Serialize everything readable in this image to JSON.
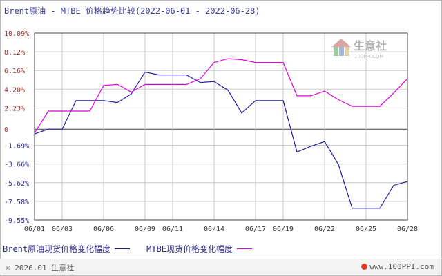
{
  "title": "Brent原油 - MTBE 价格趋势比较(2022-06-01 - 2022-06-28)",
  "watermark": {
    "text": "生意社",
    "sub": "100PPI.COM"
  },
  "legend": {
    "brent": "Brent原油现货价格变化幅度",
    "mtbe": "MTBE现货价格变化幅度"
  },
  "footer": {
    "copyright": "© 2026.01 生意社",
    "site": "www.100PPI.com"
  },
  "colors": {
    "brent": "#1c1ca0",
    "mtbe": "#e000e0",
    "grid": "#c8c8c8",
    "axis": "#444444",
    "tick_pos": "#9a2a2a",
    "tick_neg": "#2a2a9a",
    "zero": "#444444"
  },
  "chart_data": {
    "type": "line",
    "title": "Brent原油 - MTBE 价格趋势比较(2022-06-01 - 2022-06-28)",
    "xlabel": "",
    "ylabel": "",
    "x": [
      "06/01",
      "06/02",
      "06/03",
      "06/04",
      "06/05",
      "06/06",
      "06/07",
      "06/08",
      "06/09",
      "06/10",
      "06/11",
      "06/12",
      "06/13",
      "06/14",
      "06/15",
      "06/16",
      "06/17",
      "06/18",
      "06/19",
      "06/20",
      "06/21",
      "06/22",
      "06/23",
      "06/24",
      "06/25",
      "06/26",
      "06/27",
      "06/28"
    ],
    "x_tick_labels": [
      "06/01",
      "06/03",
      "06/06",
      "06/09",
      "06/11",
      "06/14",
      "06/17",
      "06/19",
      "06/22",
      "06/25",
      "06/28"
    ],
    "y_tick_labels": [
      "10.09%",
      "8.12%",
      "6.16%",
      "4.20%",
      "2.23%",
      "0",
      "-1.69%",
      "-3.66%",
      "-5.62%",
      "-7.58%",
      "-9.55%"
    ],
    "y_ticks": [
      10.09,
      8.12,
      6.16,
      4.2,
      2.23,
      0,
      -1.69,
      -3.66,
      -5.62,
      -7.58,
      -9.55
    ],
    "ylim": [
      -9.55,
      10.09
    ],
    "grid": true,
    "legend_position": "bottom-left",
    "series": [
      {
        "name": "Brent原油现货价格变化幅度",
        "values": [
          -0.5,
          0.0,
          0.0,
          3.0,
          3.0,
          3.0,
          2.8,
          3.7,
          6.0,
          5.7,
          5.7,
          5.7,
          4.9,
          5.0,
          4.1,
          1.7,
          3.0,
          3.0,
          3.0,
          -2.4,
          -1.8,
          -1.3,
          -3.7,
          -8.3,
          -8.3,
          -8.3,
          -5.9,
          -5.5
        ]
      },
      {
        "name": "MTBE现货价格变化幅度",
        "values": [
          -0.4,
          1.9,
          1.9,
          1.9,
          1.9,
          4.6,
          4.7,
          3.9,
          4.7,
          4.7,
          4.7,
          4.7,
          5.3,
          7.0,
          7.4,
          7.3,
          7.0,
          7.0,
          7.0,
          3.5,
          3.5,
          4.0,
          3.1,
          2.4,
          2.4,
          2.4,
          3.8,
          5.3
        ]
      }
    ]
  }
}
